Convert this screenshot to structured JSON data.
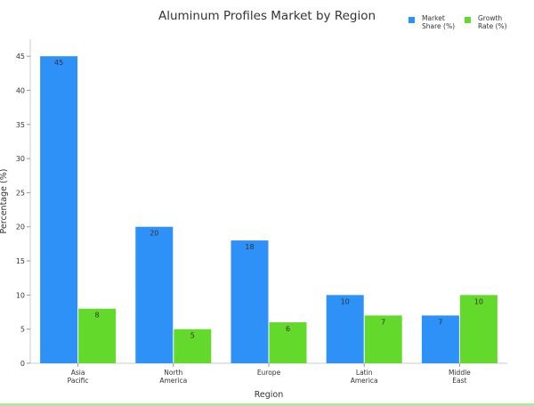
{
  "chart_data": {
    "type": "bar",
    "title": "Aluminum Profiles Market by Region",
    "xlabel": "Region",
    "ylabel": "Percentage (%)",
    "ylim": [
      0,
      47.5
    ],
    "yticks": [
      0,
      5,
      10,
      15,
      20,
      25,
      30,
      35,
      40,
      45
    ],
    "categories": [
      [
        "Asia",
        "Pacific"
      ],
      [
        "North",
        "America"
      ],
      [
        "Europe"
      ],
      [
        "Latin",
        "America"
      ],
      [
        "Middle",
        "East"
      ]
    ],
    "series": [
      {
        "name": [
          "Market",
          "Share (%)"
        ],
        "values": [
          45,
          20,
          18,
          10,
          7
        ],
        "color": "#2e91f8"
      },
      {
        "name": [
          "Growth",
          "Rate (%)"
        ],
        "values": [
          8,
          5,
          6,
          7,
          10
        ],
        "color": "#63d92b"
      }
    ],
    "grid": false,
    "legend_position": "top-right"
  }
}
